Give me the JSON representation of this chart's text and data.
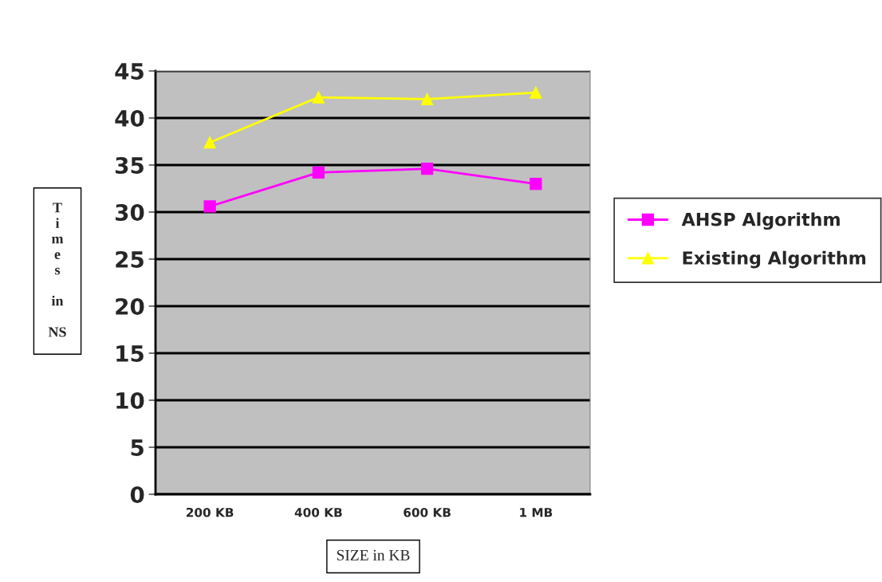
{
  "chart_data": {
    "type": "line",
    "xlabel": "SIZE in KB",
    "ylabel": "Times in NS",
    "categories": [
      "200 KB",
      "400 KB",
      "600 KB",
      "1 MB"
    ],
    "series": [
      {
        "name": "AHSP Algorithm",
        "color": "#ff00ff",
        "marker": "square",
        "values": [
          30.6,
          34.2,
          34.6,
          33.0
        ]
      },
      {
        "name": "Existing Algorithm",
        "color": "#ffff00",
        "marker": "triangle",
        "values": [
          37.4,
          42.2,
          42.0,
          42.7
        ]
      }
    ],
    "ylim": [
      0,
      45
    ],
    "yticks": [
      0,
      5,
      10,
      15,
      20,
      25,
      30,
      35,
      40,
      45
    ],
    "grid": "y",
    "legend": "right"
  }
}
